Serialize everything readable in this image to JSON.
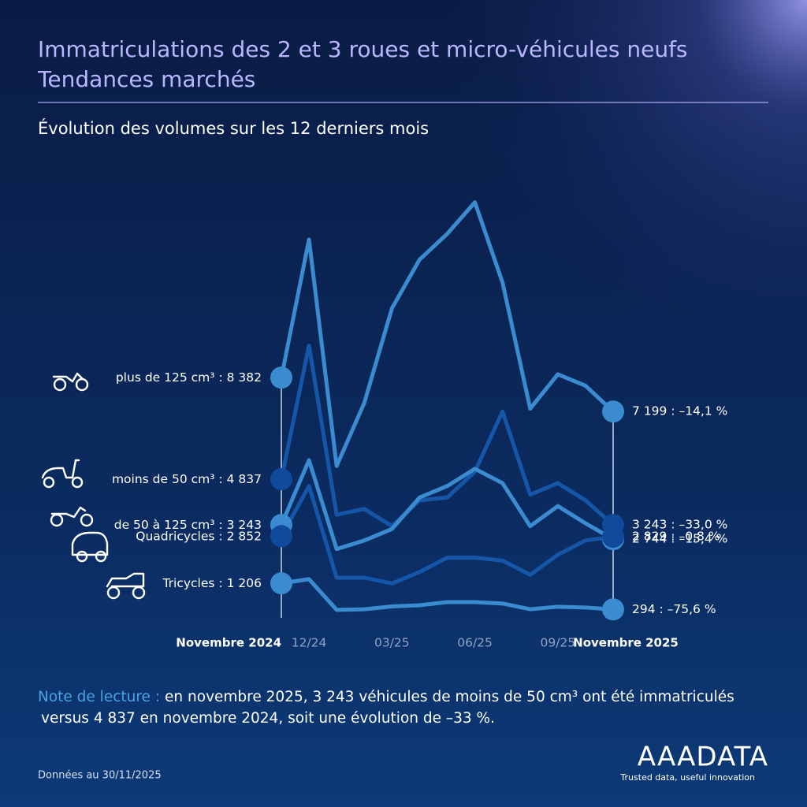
{
  "header": {
    "title": "Immatriculations des 2 et 3 roues et micro-véhicules neufs",
    "title_line2": "Tendances marchés",
    "subtitle": "Évolution des volumes sur les 12 derniers mois"
  },
  "chart_data": {
    "type": "line",
    "categories": [
      "Novembre 2024",
      "12/24",
      null,
      null,
      "03/25",
      null,
      null,
      "06/25",
      null,
      null,
      "09/25",
      null,
      "Novembre 2025"
    ],
    "ylim": [
      0,
      15000
    ],
    "series": [
      {
        "name": "plus de 125 cm³",
        "color": "#3b8bd0",
        "marker_color": "#3b8bd0",
        "values": [
          8382,
          13200,
          5300,
          7500,
          10800,
          12500,
          13400,
          14500,
          11700,
          7300,
          8500,
          8100,
          7199
        ],
        "value_labels": [
          ": 8 382",
          null,
          null,
          null,
          null,
          null,
          null,
          null,
          null,
          null,
          null,
          null,
          "7 199 : –14,1 %"
        ]
      },
      {
        "name": "moins de 50 cm³",
        "color": "#1656a8",
        "marker_color": "#0f4a9c",
        "values": [
          4837,
          9500,
          3600,
          3800,
          3200,
          4100,
          4200,
          5100,
          7200,
          4300,
          4700,
          4100,
          3243
        ],
        "value_labels": [
          ": 4 837",
          null,
          null,
          null,
          null,
          null,
          null,
          null,
          null,
          null,
          null,
          null,
          "3 243 : –33,0 %"
        ]
      },
      {
        "name": "de 50 à 125 cm³",
        "color": "#3b8bd0",
        "marker_color": "#3b8bd0",
        "values": [
          3243,
          5500,
          2400,
          2700,
          3100,
          4200,
          4600,
          5200,
          4700,
          3200,
          3900,
          3300,
          2744
        ],
        "value_labels": [
          ": 3 243",
          null,
          null,
          null,
          null,
          null,
          null,
          null,
          null,
          null,
          null,
          null,
          "2 744 : –15,4 %"
        ]
      },
      {
        "name": "Quadricycles",
        "color": "#1656a8",
        "marker_color": "#0f4a9c",
        "values": [
          2852,
          4600,
          1400,
          1400,
          1200,
          1600,
          2100,
          2100,
          2000,
          1500,
          2200,
          2700,
          2829
        ],
        "value_labels": [
          ": 2 852",
          null,
          null,
          null,
          null,
          null,
          null,
          null,
          null,
          null,
          null,
          null,
          "2 829 : –0,8 %"
        ]
      },
      {
        "name": "Tricycles",
        "color": "#3b8bd0",
        "marker_color": "#3b8bd0",
        "values": [
          1206,
          1350,
          280,
          300,
          400,
          440,
          550,
          550,
          500,
          300,
          390,
          360,
          294
        ],
        "value_labels": [
          ": 1 206",
          null,
          null,
          null,
          null,
          null,
          null,
          null,
          null,
          null,
          null,
          null,
          "294 : –75,6 %"
        ]
      }
    ]
  },
  "note": {
    "label": "Note de lecture :",
    "line1": "en novembre 2025, 3 243 véhicules de moins de 50 cm³ ont été immatriculés",
    "line2": "versus 4 837 en novembre 2024, soit une évolution de –33 %."
  },
  "footer": {
    "source": "Données au 30/11/2025",
    "logo": "AAADATA",
    "tagline": "Trusted data, useful innovation"
  }
}
